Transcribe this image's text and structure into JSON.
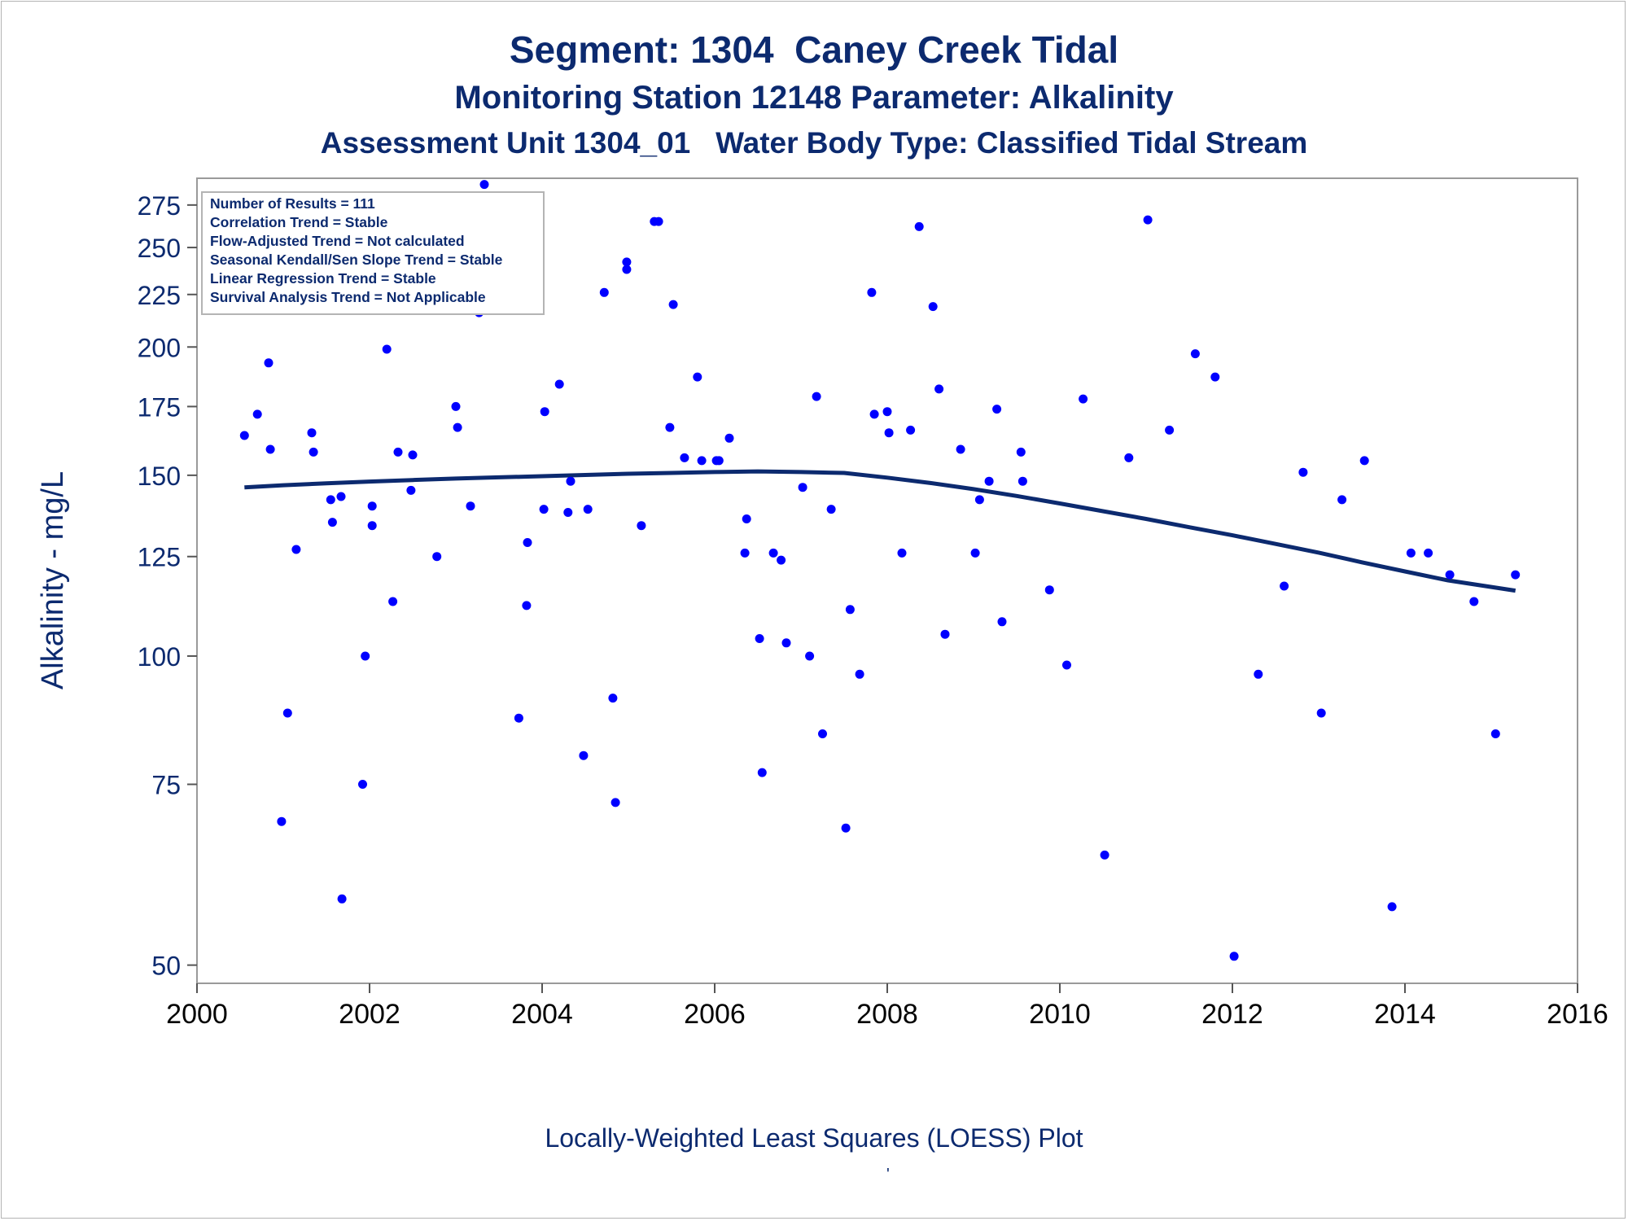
{
  "titles": {
    "line1": "Segment: 1304  Caney Creek Tidal",
    "line2": "Monitoring Station 12148 Parameter: Alkalinity",
    "line3": "Assessment Unit 1304_01   Water Body Type: Classified Tidal Stream"
  },
  "stats_box": [
    "Number of Results = 111",
    "Correlation Trend = Stable",
    "Flow-Adjusted Trend = Not calculated",
    "Seasonal Kendall/Sen Slope Trend = Stable",
    "Linear Regression Trend = Stable",
    "Survival Analysis Trend = Not Applicable"
  ],
  "footnote": "Locally-Weighted Least Squares (LOESS) Plot",
  "footnote_mark": "'",
  "colors": {
    "text": "#0c2a6f",
    "points": "#0000ff",
    "loess": "#0c2a6f",
    "frame": "#9a9a9a"
  },
  "chart_data": {
    "type": "scatter",
    "ylabel": "Alkalinity - mg/L",
    "xlabel": "",
    "x_ticks": [
      2000,
      2002,
      2004,
      2006,
      2008,
      2010,
      2012,
      2014,
      2016
    ],
    "y_ticks": [
      50,
      75,
      100,
      125,
      150,
      175,
      200,
      225,
      250,
      275
    ],
    "xlim": [
      2000,
      2016
    ],
    "y_scale": "log",
    "ylim": [
      48,
      292
    ],
    "grid": false,
    "series": [
      {
        "role": "observations",
        "points": [
          [
            2000.55,
            164
          ],
          [
            2000.7,
            172
          ],
          [
            2000.83,
            193
          ],
          [
            2000.85,
            159
          ],
          [
            2000.98,
            69
          ],
          [
            2001.05,
            88
          ],
          [
            2001.15,
            127
          ],
          [
            2001.33,
            165
          ],
          [
            2001.35,
            158
          ],
          [
            2001.55,
            142
          ],
          [
            2001.57,
            135
          ],
          [
            2001.67,
            143
          ],
          [
            2001.68,
            58
          ],
          [
            2001.92,
            75
          ],
          [
            2001.95,
            100
          ],
          [
            2002.03,
            140
          ],
          [
            2002.03,
            134
          ],
          [
            2002.2,
            199
          ],
          [
            2002.27,
            113
          ],
          [
            2002.33,
            158
          ],
          [
            2002.48,
            145
          ],
          [
            2002.5,
            157
          ],
          [
            2002.78,
            125
          ],
          [
            2003.0,
            175
          ],
          [
            2003.02,
            167
          ],
          [
            2003.17,
            140
          ],
          [
            2003.27,
            216
          ],
          [
            2003.33,
            288
          ],
          [
            2003.5,
            222
          ],
          [
            2003.73,
            87
          ],
          [
            2003.82,
            112
          ],
          [
            2003.83,
            129
          ],
          [
            2004.02,
            139
          ],
          [
            2004.03,
            173
          ],
          [
            2004.2,
            184
          ],
          [
            2004.3,
            138
          ],
          [
            2004.33,
            148
          ],
          [
            2004.48,
            80
          ],
          [
            2004.53,
            139
          ],
          [
            2004.72,
            226
          ],
          [
            2004.82,
            91
          ],
          [
            2004.85,
            72
          ],
          [
            2004.98,
            238
          ],
          [
            2004.98,
            242
          ],
          [
            2005.15,
            134
          ],
          [
            2005.3,
            265
          ],
          [
            2005.35,
            265
          ],
          [
            2005.48,
            167
          ],
          [
            2005.52,
            220
          ],
          [
            2005.65,
            156
          ],
          [
            2005.8,
            187
          ],
          [
            2005.85,
            155
          ],
          [
            2006.02,
            155
          ],
          [
            2006.05,
            155
          ],
          [
            2006.17,
            163
          ],
          [
            2006.35,
            126
          ],
          [
            2006.37,
            136
          ],
          [
            2006.52,
            104
          ],
          [
            2006.55,
            77
          ],
          [
            2006.68,
            126
          ],
          [
            2006.77,
            124
          ],
          [
            2006.83,
            103
          ],
          [
            2007.02,
            146
          ],
          [
            2007.1,
            100
          ],
          [
            2007.18,
            179
          ],
          [
            2007.25,
            84
          ],
          [
            2007.35,
            139
          ],
          [
            2007.52,
            68
          ],
          [
            2007.57,
            111
          ],
          [
            2007.68,
            96
          ],
          [
            2007.82,
            226
          ],
          [
            2007.85,
            172
          ],
          [
            2008.0,
            173
          ],
          [
            2008.02,
            165
          ],
          [
            2008.17,
            126
          ],
          [
            2008.27,
            166
          ],
          [
            2008.37,
            262
          ],
          [
            2008.53,
            219
          ],
          [
            2008.6,
            182
          ],
          [
            2008.67,
            105
          ],
          [
            2008.85,
            159
          ],
          [
            2009.02,
            126
          ],
          [
            2009.07,
            142
          ],
          [
            2009.18,
            148
          ],
          [
            2009.27,
            174
          ],
          [
            2009.33,
            108
          ],
          [
            2009.55,
            158
          ],
          [
            2009.57,
            148
          ],
          [
            2009.88,
            116
          ],
          [
            2010.08,
            98
          ],
          [
            2010.27,
            178
          ],
          [
            2010.52,
            64
          ],
          [
            2010.8,
            156
          ],
          [
            2011.02,
            266
          ],
          [
            2011.27,
            166
          ],
          [
            2011.57,
            197
          ],
          [
            2011.8,
            187
          ],
          [
            2012.02,
            51
          ],
          [
            2012.3,
            96
          ],
          [
            2012.6,
            117
          ],
          [
            2012.82,
            151
          ],
          [
            2013.03,
            88
          ],
          [
            2013.27,
            142
          ],
          [
            2013.53,
            155
          ],
          [
            2013.85,
            57
          ],
          [
            2014.07,
            126
          ],
          [
            2014.27,
            126
          ],
          [
            2014.52,
            120
          ],
          [
            2014.8,
            113
          ],
          [
            2015.05,
            84
          ],
          [
            2015.28,
            120
          ]
        ]
      },
      {
        "role": "loess_fit",
        "points": [
          [
            2000.55,
            146
          ],
          [
            2001.0,
            146.7
          ],
          [
            2001.5,
            147.3
          ],
          [
            2002.0,
            147.9
          ],
          [
            2002.5,
            148.4
          ],
          [
            2003.0,
            148.9
          ],
          [
            2003.5,
            149.3
          ],
          [
            2004.0,
            149.7
          ],
          [
            2004.5,
            150.1
          ],
          [
            2005.0,
            150.5
          ],
          [
            2005.5,
            150.8
          ],
          [
            2006.0,
            151.1
          ],
          [
            2006.5,
            151.3
          ],
          [
            2007.0,
            151.1
          ],
          [
            2007.5,
            150.8
          ],
          [
            2008.0,
            149.2
          ],
          [
            2008.5,
            147.4
          ],
          [
            2009.0,
            145.4
          ],
          [
            2009.5,
            143.2
          ],
          [
            2010.0,
            140.8
          ],
          [
            2010.5,
            138.4
          ],
          [
            2011.0,
            136.0
          ],
          [
            2011.5,
            133.5
          ],
          [
            2012.0,
            131.1
          ],
          [
            2012.5,
            128.6
          ],
          [
            2013.0,
            126.1
          ],
          [
            2013.5,
            123.4
          ],
          [
            2014.0,
            120.9
          ],
          [
            2014.5,
            118.5
          ],
          [
            2015.28,
            115.8
          ]
        ]
      }
    ]
  }
}
